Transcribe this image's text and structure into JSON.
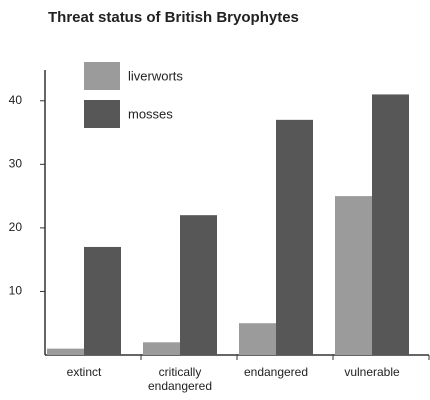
{
  "chart_data": {
    "type": "bar",
    "title": "Threat status of British Bryophytes",
    "categories": [
      "extinct",
      "critically endangered",
      "endangered",
      "vulnerable"
    ],
    "series": [
      {
        "name": "liverworts",
        "color": "#9b9b9b",
        "values": [
          1,
          2,
          5,
          25
        ]
      },
      {
        "name": "mosses",
        "color": "#575757",
        "values": [
          17,
          22,
          37,
          41
        ]
      }
    ],
    "ylim": [
      0,
      45
    ],
    "yticks": [
      10,
      20,
      30,
      40
    ],
    "legend": "upper left"
  }
}
